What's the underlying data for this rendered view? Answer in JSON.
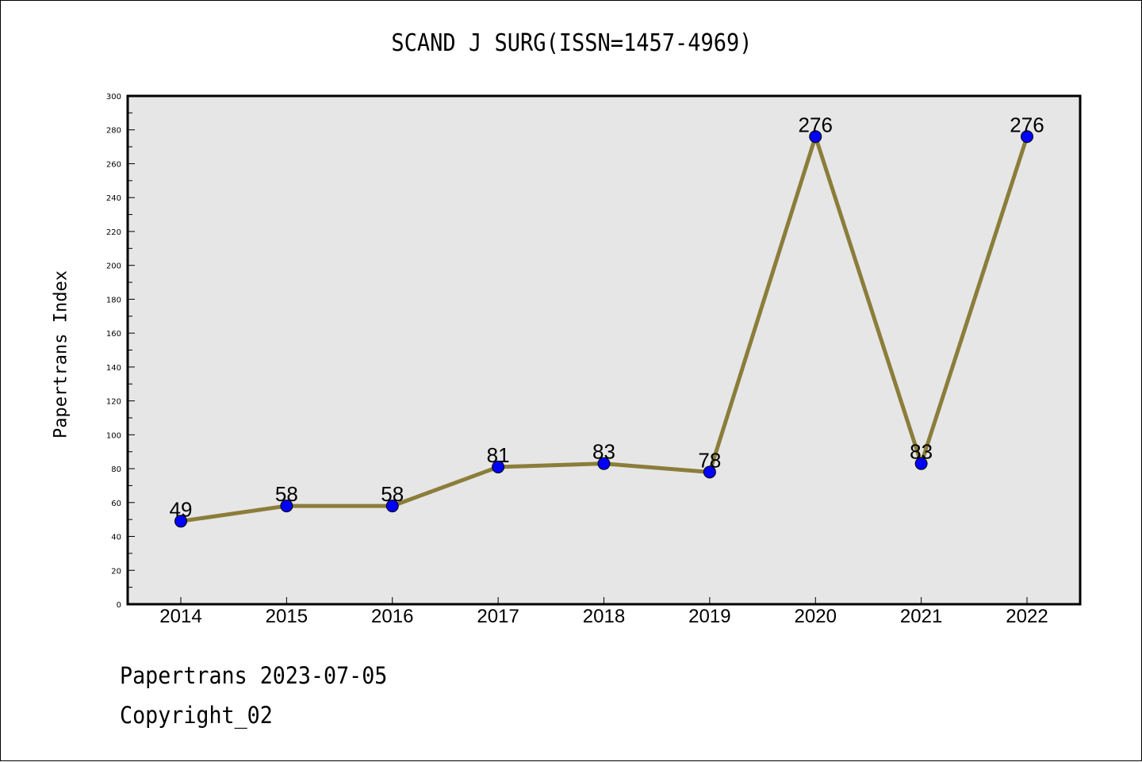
{
  "title": "SCAND J SURG(ISSN=1457-4969)",
  "footer": {
    "line1": "Papertrans 2023-07-05",
    "line2": "Copyright_02"
  },
  "chart_data": {
    "type": "line",
    "title": "SCAND J SURG(ISSN=1457-4969)",
    "xlabel": "",
    "ylabel": "Papertrans Index",
    "categories": [
      "2014",
      "2015",
      "2016",
      "2017",
      "2018",
      "2019",
      "2020",
      "2021",
      "2022"
    ],
    "series": [
      {
        "values": [
          49,
          58,
          58,
          81,
          83,
          78,
          276,
          83,
          276
        ]
      }
    ],
    "ylim": [
      0,
      300
    ],
    "yticks": [
      0,
      20,
      40,
      60,
      80,
      100,
      120,
      140,
      160,
      180,
      200,
      220,
      240,
      260,
      280,
      300
    ],
    "grid": false,
    "colors": {
      "line": "#8B7D3A",
      "marker": "#0000FF",
      "plot_bg": "#E6E6E6"
    }
  }
}
